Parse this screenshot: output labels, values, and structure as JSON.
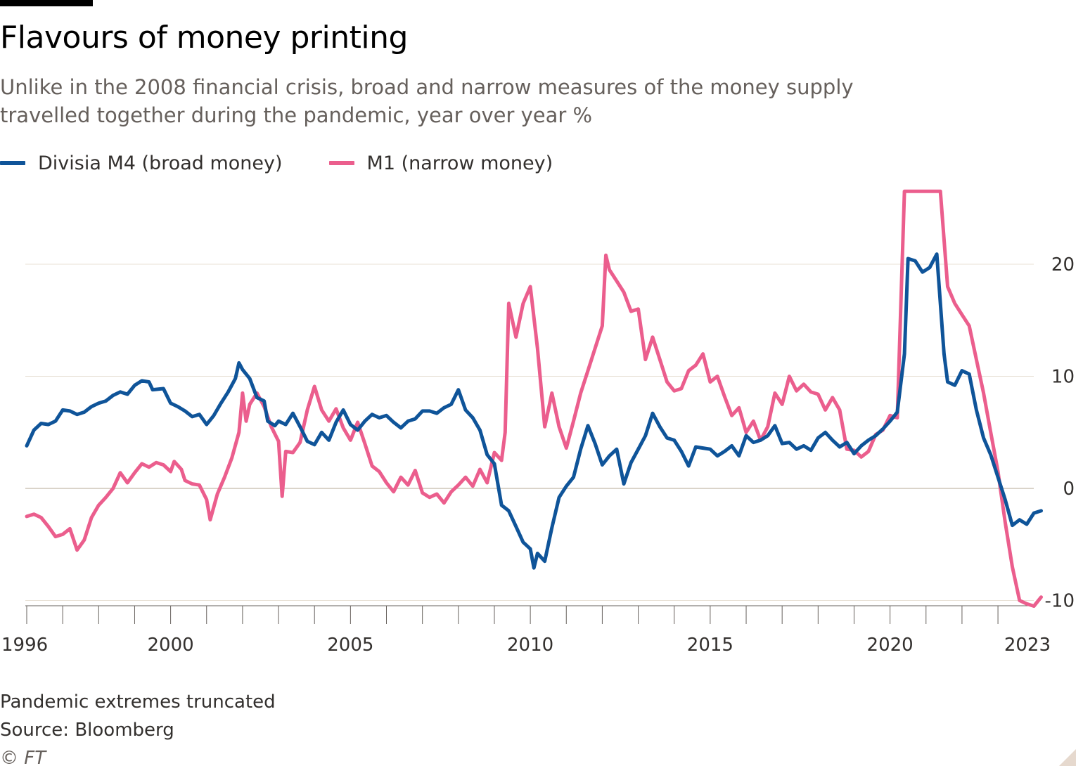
{
  "title": "Flavours of money printing",
  "subtitle": "Unlike in the 2008 financial crisis, broad and narrow measures of the money supply travelled together during the pandemic, year over year %",
  "footnote": "Pandemic extremes truncated",
  "source": "Source: Bloomberg",
  "copyright": "© FT",
  "chart_data": {
    "type": "line",
    "xlim": [
      1996,
      2023.1
    ],
    "ylim": [
      -10.5,
      27
    ],
    "y_ticks": [
      20,
      10,
      0,
      -10
    ],
    "x_tick_labels": [
      "1996",
      "2000",
      "2005",
      "2010",
      "2015",
      "2020",
      "2023"
    ],
    "grid": true,
    "legend_position": "top-left",
    "truncation_value": 26.5,
    "series": [
      {
        "name": "Divisia M4 (broad money)",
        "color": "#0f5499",
        "points": [
          [
            1996.0,
            3.8
          ],
          [
            1996.2,
            5.2
          ],
          [
            1996.4,
            5.8
          ],
          [
            1996.6,
            5.7
          ],
          [
            1996.8,
            6.0
          ],
          [
            1997.0,
            7.0
          ],
          [
            1997.2,
            6.9
          ],
          [
            1997.4,
            6.6
          ],
          [
            1997.6,
            6.8
          ],
          [
            1997.8,
            7.3
          ],
          [
            1998.0,
            7.6
          ],
          [
            1998.2,
            7.8
          ],
          [
            1998.4,
            8.3
          ],
          [
            1998.6,
            8.6
          ],
          [
            1998.8,
            8.4
          ],
          [
            1999.0,
            9.2
          ],
          [
            1999.2,
            9.6
          ],
          [
            1999.4,
            9.5
          ],
          [
            1999.5,
            8.8
          ],
          [
            1999.8,
            8.9
          ],
          [
            2000.0,
            7.6
          ],
          [
            2000.2,
            7.3
          ],
          [
            2000.4,
            6.9
          ],
          [
            2000.6,
            6.4
          ],
          [
            2000.8,
            6.6
          ],
          [
            2001.0,
            5.7
          ],
          [
            2001.2,
            6.5
          ],
          [
            2001.4,
            7.6
          ],
          [
            2001.6,
            8.6
          ],
          [
            2001.8,
            9.8
          ],
          [
            2001.9,
            11.2
          ],
          [
            2002.0,
            10.6
          ],
          [
            2002.2,
            9.8
          ],
          [
            2002.4,
            8.1
          ],
          [
            2002.6,
            7.8
          ],
          [
            2002.7,
            6.0
          ],
          [
            2002.9,
            5.6
          ],
          [
            2003.0,
            6.0
          ],
          [
            2003.2,
            5.7
          ],
          [
            2003.4,
            6.7
          ],
          [
            2003.6,
            5.5
          ],
          [
            2003.8,
            4.2
          ],
          [
            2004.0,
            3.9
          ],
          [
            2004.2,
            5.0
          ],
          [
            2004.4,
            4.3
          ],
          [
            2004.6,
            5.9
          ],
          [
            2004.8,
            7.0
          ],
          [
            2005.0,
            5.7
          ],
          [
            2005.2,
            5.2
          ],
          [
            2005.4,
            6.0
          ],
          [
            2005.6,
            6.6
          ],
          [
            2005.8,
            6.3
          ],
          [
            2006.0,
            6.5
          ],
          [
            2006.2,
            5.9
          ],
          [
            2006.4,
            5.4
          ],
          [
            2006.6,
            6.0
          ],
          [
            2006.8,
            6.2
          ],
          [
            2007.0,
            6.9
          ],
          [
            2007.2,
            6.9
          ],
          [
            2007.4,
            6.7
          ],
          [
            2007.6,
            7.2
          ],
          [
            2007.8,
            7.5
          ],
          [
            2008.0,
            8.8
          ],
          [
            2008.2,
            7.0
          ],
          [
            2008.4,
            6.3
          ],
          [
            2008.6,
            5.2
          ],
          [
            2008.8,
            3.0
          ],
          [
            2009.0,
            2.2
          ],
          [
            2009.2,
            -1.5
          ],
          [
            2009.4,
            -2.0
          ],
          [
            2009.6,
            -3.4
          ],
          [
            2009.8,
            -4.8
          ],
          [
            2010.0,
            -5.4
          ],
          [
            2010.1,
            -7.1
          ],
          [
            2010.2,
            -5.8
          ],
          [
            2010.4,
            -6.5
          ],
          [
            2010.6,
            -3.5
          ],
          [
            2010.8,
            -0.8
          ],
          [
            2011.0,
            0.2
          ],
          [
            2011.2,
            1.0
          ],
          [
            2011.4,
            3.5
          ],
          [
            2011.6,
            5.6
          ],
          [
            2011.8,
            4.0
          ],
          [
            2012.0,
            2.1
          ],
          [
            2012.2,
            2.9
          ],
          [
            2012.4,
            3.5
          ],
          [
            2012.6,
            0.4
          ],
          [
            2012.8,
            2.3
          ],
          [
            2013.0,
            3.5
          ],
          [
            2013.2,
            4.7
          ],
          [
            2013.4,
            6.7
          ],
          [
            2013.6,
            5.5
          ],
          [
            2013.8,
            4.5
          ],
          [
            2014.0,
            4.3
          ],
          [
            2014.2,
            3.3
          ],
          [
            2014.4,
            2.0
          ],
          [
            2014.6,
            3.7
          ],
          [
            2014.8,
            3.6
          ],
          [
            2015.0,
            3.5
          ],
          [
            2015.2,
            2.9
          ],
          [
            2015.4,
            3.3
          ],
          [
            2015.6,
            3.8
          ],
          [
            2015.8,
            2.9
          ],
          [
            2016.0,
            4.7
          ],
          [
            2016.2,
            4.1
          ],
          [
            2016.4,
            4.3
          ],
          [
            2016.6,
            4.7
          ],
          [
            2016.8,
            5.6
          ],
          [
            2017.0,
            4.0
          ],
          [
            2017.2,
            4.1
          ],
          [
            2017.4,
            3.5
          ],
          [
            2017.6,
            3.8
          ],
          [
            2017.8,
            3.4
          ],
          [
            2018.0,
            4.5
          ],
          [
            2018.2,
            5.0
          ],
          [
            2018.4,
            4.3
          ],
          [
            2018.6,
            3.7
          ],
          [
            2018.8,
            4.1
          ],
          [
            2019.0,
            3.1
          ],
          [
            2019.2,
            3.8
          ],
          [
            2019.4,
            4.3
          ],
          [
            2019.6,
            4.7
          ],
          [
            2019.8,
            5.3
          ],
          [
            2020.0,
            6.0
          ],
          [
            2020.2,
            6.8
          ],
          [
            2020.4,
            12.0
          ],
          [
            2020.5,
            20.5
          ],
          [
            2020.7,
            20.3
          ],
          [
            2020.9,
            19.3
          ],
          [
            2021.1,
            19.7
          ],
          [
            2021.3,
            20.9
          ],
          [
            2021.5,
            12.0
          ],
          [
            2021.6,
            9.5
          ],
          [
            2021.8,
            9.2
          ],
          [
            2022.0,
            10.5
          ],
          [
            2022.2,
            10.2
          ],
          [
            2022.4,
            7.0
          ],
          [
            2022.6,
            4.5
          ],
          [
            2022.8,
            3.0
          ],
          [
            2023.0,
            1.0
          ],
          [
            2023.2,
            -1.0
          ],
          [
            2023.4,
            -3.3
          ],
          [
            2023.6,
            -2.8
          ],
          [
            2023.8,
            -3.2
          ],
          [
            2024.0,
            -2.2
          ],
          [
            2024.2,
            -2.0
          ]
        ]
      },
      {
        "name": "M1 (narrow money)",
        "color": "#eb5e8d",
        "points": [
          [
            1996.0,
            -2.5
          ],
          [
            1996.2,
            -2.3
          ],
          [
            1996.4,
            -2.6
          ],
          [
            1996.6,
            -3.4
          ],
          [
            1996.8,
            -4.3
          ],
          [
            1997.0,
            -4.1
          ],
          [
            1997.2,
            -3.6
          ],
          [
            1997.4,
            -5.5
          ],
          [
            1997.6,
            -4.6
          ],
          [
            1997.8,
            -2.6
          ],
          [
            1998.0,
            -1.5
          ],
          [
            1998.2,
            -0.8
          ],
          [
            1998.4,
            0.0
          ],
          [
            1998.6,
            1.4
          ],
          [
            1998.8,
            0.5
          ],
          [
            1999.0,
            1.4
          ],
          [
            1999.2,
            2.2
          ],
          [
            1999.4,
            1.9
          ],
          [
            1999.6,
            2.3
          ],
          [
            1999.8,
            2.1
          ],
          [
            2000.0,
            1.5
          ],
          [
            2000.1,
            2.4
          ],
          [
            2000.3,
            1.7
          ],
          [
            2000.4,
            0.7
          ],
          [
            2000.6,
            0.4
          ],
          [
            2000.8,
            0.3
          ],
          [
            2001.0,
            -1.0
          ],
          [
            2001.1,
            -2.8
          ],
          [
            2001.3,
            -0.5
          ],
          [
            2001.5,
            1.0
          ],
          [
            2001.7,
            2.7
          ],
          [
            2001.9,
            5.0
          ],
          [
            2002.0,
            8.5
          ],
          [
            2002.1,
            6.0
          ],
          [
            2002.2,
            7.5
          ],
          [
            2002.4,
            8.5
          ],
          [
            2002.6,
            7.3
          ],
          [
            2002.8,
            5.5
          ],
          [
            2003.0,
            4.2
          ],
          [
            2003.1,
            -0.7
          ],
          [
            2003.2,
            3.3
          ],
          [
            2003.4,
            3.2
          ],
          [
            2003.6,
            4.1
          ],
          [
            2003.8,
            7.0
          ],
          [
            2004.0,
            9.1
          ],
          [
            2004.2,
            7.0
          ],
          [
            2004.4,
            6.0
          ],
          [
            2004.6,
            7.1
          ],
          [
            2004.8,
            5.4
          ],
          [
            2005.0,
            4.3
          ],
          [
            2005.2,
            5.9
          ],
          [
            2005.4,
            4.0
          ],
          [
            2005.6,
            2.0
          ],
          [
            2005.8,
            1.5
          ],
          [
            2006.0,
            0.5
          ],
          [
            2006.2,
            -0.3
          ],
          [
            2006.4,
            1.0
          ],
          [
            2006.6,
            0.3
          ],
          [
            2006.8,
            1.6
          ],
          [
            2007.0,
            -0.4
          ],
          [
            2007.2,
            -0.8
          ],
          [
            2007.4,
            -0.5
          ],
          [
            2007.6,
            -1.3
          ],
          [
            2007.8,
            -0.3
          ],
          [
            2008.0,
            0.3
          ],
          [
            2008.2,
            1.0
          ],
          [
            2008.4,
            0.2
          ],
          [
            2008.6,
            1.7
          ],
          [
            2008.8,
            0.5
          ],
          [
            2009.0,
            3.2
          ],
          [
            2009.2,
            2.5
          ],
          [
            2009.3,
            5.0
          ],
          [
            2009.4,
            16.5
          ],
          [
            2009.6,
            13.5
          ],
          [
            2009.8,
            16.5
          ],
          [
            2010.0,
            18.0
          ],
          [
            2010.2,
            12.5
          ],
          [
            2010.4,
            5.5
          ],
          [
            2010.6,
            8.5
          ],
          [
            2010.8,
            5.5
          ],
          [
            2011.0,
            3.6
          ],
          [
            2011.2,
            6.0
          ],
          [
            2011.4,
            8.5
          ],
          [
            2011.6,
            10.5
          ],
          [
            2011.8,
            12.5
          ],
          [
            2012.0,
            14.5
          ],
          [
            2012.1,
            20.8
          ],
          [
            2012.2,
            19.5
          ],
          [
            2012.4,
            18.5
          ],
          [
            2012.6,
            17.5
          ],
          [
            2012.8,
            15.8
          ],
          [
            2013.0,
            16.0
          ],
          [
            2013.2,
            11.5
          ],
          [
            2013.4,
            13.5
          ],
          [
            2013.6,
            11.5
          ],
          [
            2013.8,
            9.5
          ],
          [
            2014.0,
            8.7
          ],
          [
            2014.2,
            8.9
          ],
          [
            2014.4,
            10.5
          ],
          [
            2014.6,
            11.0
          ],
          [
            2014.8,
            12.0
          ],
          [
            2015.0,
            9.5
          ],
          [
            2015.2,
            10.0
          ],
          [
            2015.4,
            8.2
          ],
          [
            2015.6,
            6.5
          ],
          [
            2015.8,
            7.2
          ],
          [
            2016.0,
            5.0
          ],
          [
            2016.2,
            6.0
          ],
          [
            2016.4,
            4.3
          ],
          [
            2016.6,
            5.5
          ],
          [
            2016.8,
            8.5
          ],
          [
            2017.0,
            7.5
          ],
          [
            2017.2,
            10.0
          ],
          [
            2017.4,
            8.7
          ],
          [
            2017.6,
            9.3
          ],
          [
            2017.8,
            8.6
          ],
          [
            2018.0,
            8.4
          ],
          [
            2018.2,
            7.0
          ],
          [
            2018.4,
            8.1
          ],
          [
            2018.6,
            7.0
          ],
          [
            2018.8,
            3.5
          ],
          [
            2019.0,
            3.4
          ],
          [
            2019.2,
            2.8
          ],
          [
            2019.4,
            3.3
          ],
          [
            2019.6,
            4.8
          ],
          [
            2019.8,
            5.2
          ],
          [
            2020.0,
            6.5
          ],
          [
            2020.2,
            6.3
          ],
          [
            2020.4,
            26.5
          ],
          [
            2021.4,
            26.5
          ],
          [
            2021.6,
            18.0
          ],
          [
            2021.8,
            16.5
          ],
          [
            2022.0,
            15.5
          ],
          [
            2022.2,
            14.5
          ],
          [
            2022.4,
            11.5
          ],
          [
            2022.6,
            8.5
          ],
          [
            2022.8,
            5.0
          ],
          [
            2023.0,
            1.5
          ],
          [
            2023.2,
            -3.0
          ],
          [
            2023.4,
            -7.0
          ],
          [
            2023.6,
            -10.0
          ],
          [
            2023.8,
            -10.3
          ],
          [
            2024.0,
            -10.5
          ],
          [
            2024.2,
            -9.7
          ]
        ]
      }
    ]
  }
}
